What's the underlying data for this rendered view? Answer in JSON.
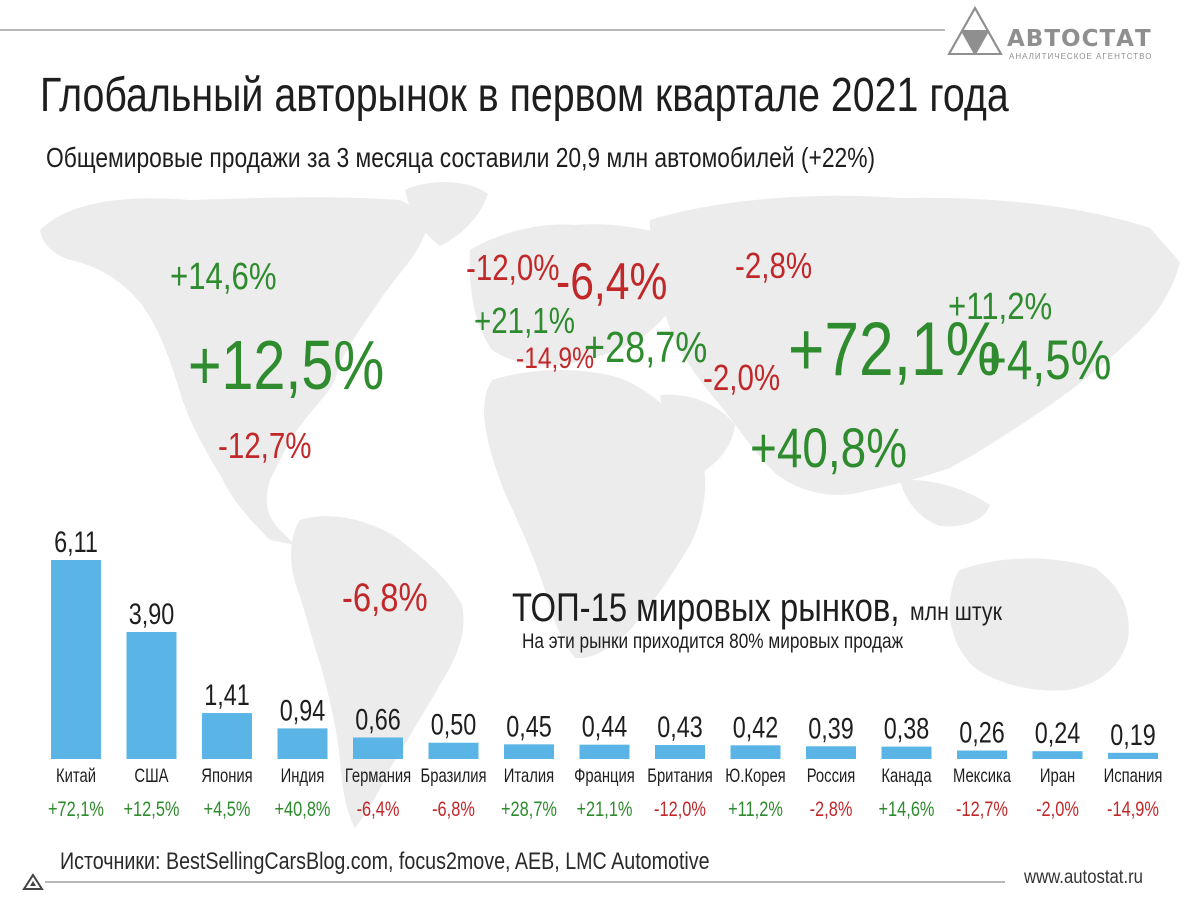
{
  "header": {
    "title": "Глобальный авторынок в первом квартале 2021 года",
    "subtitle": "Общемировые продажи за 3 месяца составили 20,9 млн автомобилей (+22%)"
  },
  "logo": {
    "name": "АВТОСТАТ",
    "tagline": "АНАЛИТИЧЕСКОЕ АГЕНТСТВО",
    "icon": "triangle-mosaic-logo-icon"
  },
  "map": {
    "labels": [
      {
        "text": "+14,6%",
        "tone": "pos"
      },
      {
        "text": "+12,5%",
        "tone": "pos"
      },
      {
        "text": "-12,7%",
        "tone": "neg"
      },
      {
        "text": "-12,0%",
        "tone": "neg"
      },
      {
        "text": "-6,4%",
        "tone": "neg"
      },
      {
        "text": "+21,1%",
        "tone": "pos"
      },
      {
        "text": "-14,9%",
        "tone": "neg"
      },
      {
        "text": "+28,7%",
        "tone": "pos"
      },
      {
        "text": "-2,8%",
        "tone": "neg"
      },
      {
        "text": "+11,2%",
        "tone": "pos"
      },
      {
        "text": "-2,0%",
        "tone": "neg"
      },
      {
        "text": "+72,1%",
        "tone": "pos"
      },
      {
        "text": "+4,5%",
        "tone": "pos"
      },
      {
        "text": "+40,8%",
        "tone": "pos"
      },
      {
        "text": "-6,8%",
        "tone": "neg"
      }
    ]
  },
  "chart_data": {
    "type": "bar",
    "title": "ТОП-15 мировых рынков,",
    "unit": "млн штук",
    "note": "На эти рынки приходится 80% мировых продаж",
    "categories": [
      "Китай",
      "США",
      "Япония",
      "Индия",
      "Германия",
      "Бразилия",
      "Италия",
      "Франция",
      "Британия",
      "Ю.Корея",
      "Россия",
      "Канада",
      "Мексика",
      "Иран",
      "Испания"
    ],
    "values": [
      6.11,
      3.9,
      1.41,
      0.94,
      0.66,
      0.5,
      0.45,
      0.44,
      0.43,
      0.42,
      0.39,
      0.38,
      0.26,
      0.24,
      0.19
    ],
    "value_labels": [
      "6,11",
      "3,90",
      "1,41",
      "0,94",
      "0,66",
      "0,50",
      "0,45",
      "0,44",
      "0,43",
      "0,42",
      "0,39",
      "0,38",
      "0,26",
      "0,24",
      "0,19"
    ],
    "growth": [
      "+72,1%",
      "+12,5%",
      "+4,5%",
      "+40,8%",
      "-6,4%",
      "-6,8%",
      "+28,7%",
      "+21,1%",
      "-12,0%",
      "+11,2%",
      "-2,8%",
      "+14,6%",
      "-12,7%",
      "-2,0%",
      "-14,9%"
    ],
    "ylim": [
      0,
      6.11
    ],
    "grid": false,
    "legend": "none"
  },
  "colors": {
    "bar": "#5ab4e5",
    "positive": "#2e8b2e",
    "negative": "#c0282a",
    "map": "#ececec",
    "text": "#1e1e1e",
    "accent_gray": "#8f8f8f"
  },
  "footer": {
    "sources": "Источники: BestSellingCarsBlog.com, focus2move, AEB, LMC Automotive",
    "url": "www.autostat.ru"
  }
}
